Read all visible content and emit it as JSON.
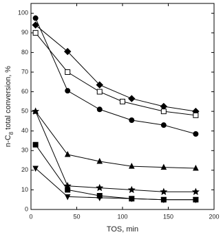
{
  "chart_data": {
    "type": "line",
    "xlabel": "TOS, min",
    "ylabel": [
      "n-C",
      "8",
      " total conversion, %"
    ],
    "xlim": [
      0,
      200
    ],
    "xticks": [
      0,
      50,
      100,
      150,
      200
    ],
    "ylim": [
      0,
      105
    ],
    "yticks": [
      0,
      10,
      20,
      30,
      40,
      50,
      60,
      70,
      80,
      90,
      100
    ],
    "series": [
      {
        "color": "#000000",
        "marker": "diamond",
        "filled": true,
        "x": [
          5,
          40,
          75,
          110,
          145,
          180
        ],
        "values": [
          94,
          80.5,
          63.5,
          56.5,
          52.5,
          50
        ]
      },
      {
        "color": "#000000",
        "marker": "circle",
        "filled": true,
        "x": [
          5,
          40,
          75,
          110,
          145,
          180
        ],
        "values": [
          97.5,
          60.5,
          51,
          45.5,
          43,
          38.5
        ]
      },
      {
        "color": "#000000",
        "marker": "square",
        "filled": false,
        "x": [
          5,
          40,
          75,
          100,
          145,
          180
        ],
        "values": [
          90,
          70,
          60,
          55,
          50,
          48
        ]
      },
      {
        "color": "#000000",
        "marker": "triangle-up",
        "filled": true,
        "x": [
          5,
          40,
          75,
          110,
          145,
          180
        ],
        "values": [
          50,
          28,
          24.5,
          22,
          21.5,
          21
        ]
      },
      {
        "color": "#000000",
        "marker": "star",
        "filled": true,
        "x": [
          5,
          40,
          75,
          110,
          145,
          180
        ],
        "values": [
          50,
          12,
          11,
          10,
          9,
          9
        ]
      },
      {
        "color": "#000000",
        "marker": "square",
        "filled": true,
        "x": [
          5,
          40,
          75,
          110,
          145,
          180
        ],
        "values": [
          33,
          10,
          7,
          5.5,
          5,
          5
        ]
      },
      {
        "color": "#000000",
        "marker": "triangle-down",
        "filled": true,
        "x": [
          5,
          40,
          75,
          110,
          145,
          180
        ],
        "values": [
          21,
          6.5,
          6,
          5.5,
          5,
          5
        ]
      }
    ]
  }
}
